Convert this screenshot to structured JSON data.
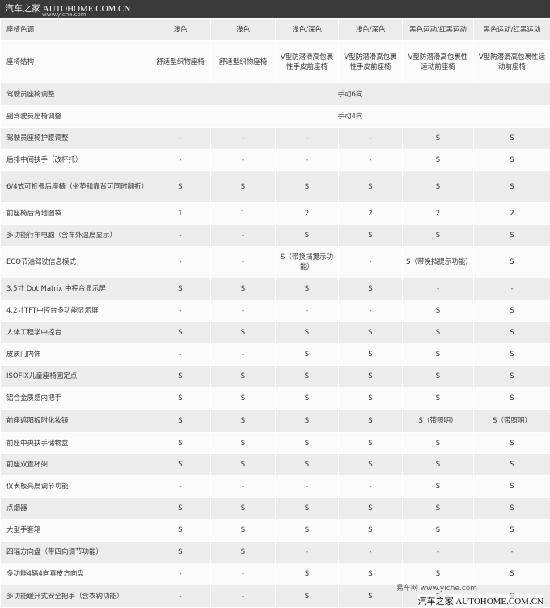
{
  "watermarks": {
    "top": "汽车之家 AUTOHOME.COM.CN",
    "top_sub": "www.yiche.com",
    "bottom_yiche": "易车网 www.yiche.com",
    "bottom": "汽车之家 AUTOHOME.COM.CN"
  },
  "table": {
    "header": [
      "座椅色调",
      "浅色",
      "浅色",
      "浅色/深色",
      "浅色/深色",
      "黑色运动/红黑运动",
      "黑色运动/红黑运动"
    ],
    "rows": [
      [
        "座椅结构",
        "舒适型织物座椅",
        "舒适型织物座椅",
        "V型防潜滑高包裹性手皮前座椅",
        "V型防潜滑高包裹性手皮前座椅",
        "V型防潜滑高包裹性运动前座椅",
        "V型防潜滑高包裹性运动前座椅"
      ],
      [
        "驾驶员座椅调整",
        "手动6向"
      ],
      [
        "副驾驶员座椅调整",
        "手动4向"
      ],
      [
        "驾驶员座椅护腰调整",
        "-",
        "-",
        "-",
        "-",
        "S",
        "S"
      ],
      [
        "后排中间扶手（改杯托）",
        "-",
        "-",
        "-",
        "-",
        "S",
        "S"
      ],
      [
        "6/4式可折叠后座椅（坐垫和靠背可同时翻折）",
        "S",
        "S",
        "S",
        "S",
        "S",
        "S"
      ],
      [
        "前座椅后背地图袋",
        "1",
        "1",
        "2",
        "2",
        "2",
        "2"
      ],
      [
        "多功能行车电脑（含车外温度显示）",
        "-",
        "-",
        "S",
        "S",
        "S",
        "S"
      ],
      [
        "ECO节油驾驶信息模式",
        "-",
        "-",
        "S（带换挡提示功能）",
        "-",
        "S（带换挡提示功能）",
        "S"
      ],
      [
        "3.5寸 Dot Matrix 中控台显示屏",
        "S",
        "S",
        "S",
        "S",
        "-",
        "-"
      ],
      [
        "4.2寸TFT中控台多功能显示屏",
        "-",
        "-",
        "-",
        "-",
        "S",
        "S"
      ],
      [
        "人体工程学中控台",
        "S",
        "S",
        "S",
        "S",
        "S",
        "S"
      ],
      [
        "皮质门内饰",
        "-",
        "-",
        "S",
        "S",
        "S",
        "S"
      ],
      [
        "ISOFIX儿童座椅固定点",
        "S",
        "S",
        "S",
        "S",
        "S",
        "S"
      ],
      [
        "铝合金质感内把手",
        "S",
        "S",
        "S",
        "S",
        "S",
        "S"
      ],
      [
        "前座遮阳板附化妆镜",
        "S",
        "S",
        "S",
        "S",
        "S（带照明）",
        "S（带照明）"
      ],
      [
        "前座中央扶手储物盒",
        "S",
        "S",
        "S",
        "S",
        "S",
        "S"
      ],
      [
        "前座双置杯架",
        "S",
        "S",
        "S",
        "S",
        "S",
        "S"
      ],
      [
        "仪表板亮度调节功能",
        "-",
        "-",
        "-",
        "-",
        "S",
        "S"
      ],
      [
        "点烟器",
        "S",
        "S",
        "S",
        "S",
        "S",
        "S"
      ],
      [
        "大型手套箱",
        "S",
        "S",
        "S",
        "S",
        "S",
        "S"
      ],
      [
        "四辐方向盘（带四向调节功能）",
        "S",
        "S",
        "-",
        "-",
        "-",
        "-"
      ],
      [
        "多功能4辐4向真皮方向盘",
        "-",
        "-",
        "S",
        "S",
        "S",
        "S"
      ],
      [
        "多功能缓升式安全把手（含衣钩功能）",
        "-",
        "-",
        "S",
        "S",
        "S",
        "S"
      ]
    ]
  }
}
